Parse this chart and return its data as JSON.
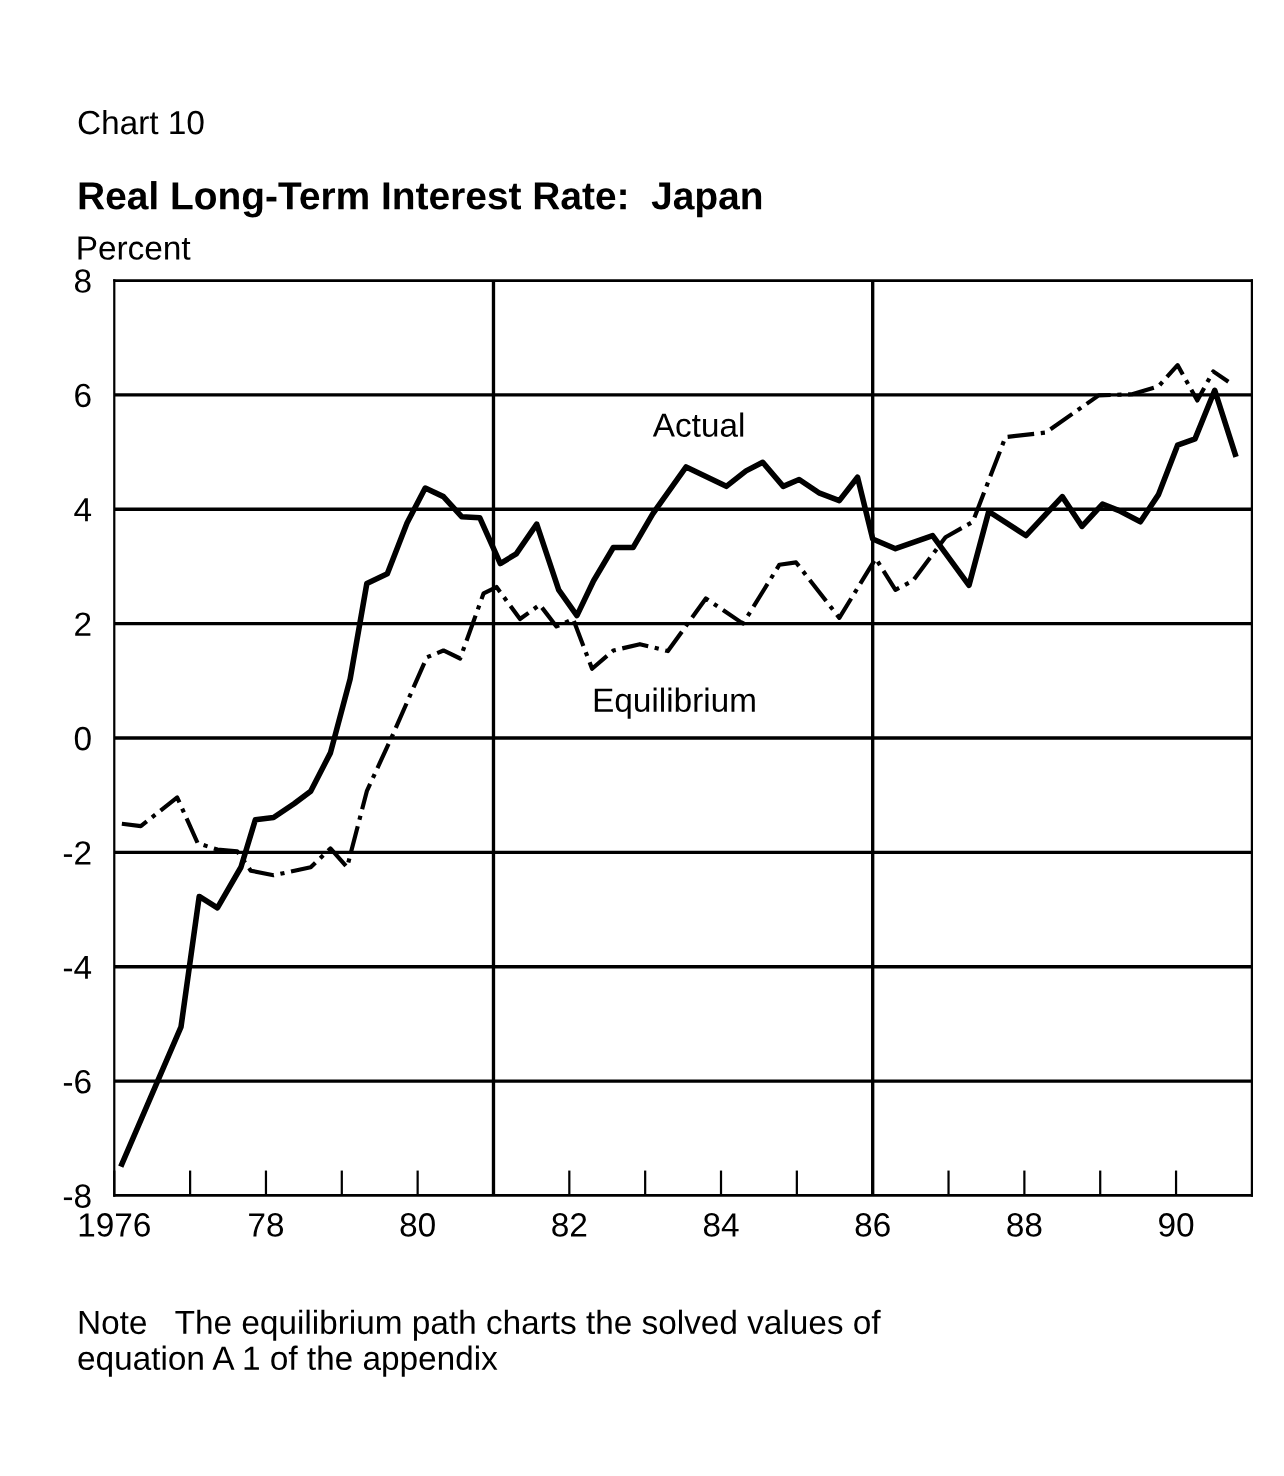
{
  "chart_data": {
    "type": "line",
    "subtitle": "Chart 10",
    "title": "Real Long-Term Interest Rate:  Japan",
    "ylabel": "Percent",
    "annotations": [
      "Note   The equilibrium path charts the solved values of\nequation A 1 of the appendix"
    ],
    "series": [
      {
        "name": "Actual",
        "color": "#000000",
        "line_style": "solid",
        "x": [
          1976.1,
          1976.88,
          1977.12,
          1977.36,
          1977.67,
          1977.86,
          1978.1,
          1978.37,
          1978.59,
          1978.85,
          1979.11,
          1979.33,
          1979.6,
          1979.86,
          1980.1,
          1980.34,
          1980.58,
          1980.82,
          1981.09,
          1981.3,
          1981.57,
          1981.86,
          1982.1,
          1982.32,
          1982.58,
          1982.84,
          1983.1,
          1983.54,
          1984.07,
          1984.33,
          1984.55,
          1984.82,
          1985.03,
          1985.3,
          1985.56,
          1985.8,
          1986.0,
          1986.3,
          1986.79,
          1987.27,
          1987.53,
          1988.02,
          1988.5,
          1988.76,
          1989.03,
          1989.24,
          1989.53,
          1989.77,
          1990.02,
          1990.25,
          1990.51,
          1990.78
        ],
        "values": [
          -7.45,
          -5.05,
          -2.77,
          -2.97,
          -2.26,
          -1.43,
          -1.39,
          -1.15,
          -0.93,
          -0.26,
          1.03,
          2.7,
          2.87,
          3.76,
          4.37,
          4.22,
          3.87,
          3.85,
          3.05,
          3.22,
          3.74,
          2.59,
          2.14,
          2.75,
          3.33,
          3.33,
          3.92,
          4.74,
          4.4,
          4.67,
          4.82,
          4.4,
          4.52,
          4.28,
          4.15,
          4.56,
          3.48,
          3.31,
          3.54,
          2.67,
          3.96,
          3.54,
          4.22,
          3.7,
          4.09,
          3.98,
          3.78,
          4.26,
          5.12,
          5.23,
          6.08,
          4.96
        ]
      },
      {
        "name": "Equilibrium",
        "color": "#000000",
        "line_style": "dashdot",
        "x": [
          1976.1,
          1976.35,
          1976.83,
          1977.1,
          1977.36,
          1977.62,
          1977.8,
          1978.1,
          1978.59,
          1978.85,
          1979.07,
          1979.33,
          1979.68,
          1980.12,
          1980.34,
          1980.56,
          1980.87,
          1981.04,
          1981.35,
          1981.61,
          1981.83,
          1982.05,
          1982.3,
          1982.58,
          1982.93,
          1983.3,
          1983.8,
          1984.29,
          1984.77,
          1984.99,
          1985.56,
          1986.04,
          1986.3,
          1986.53,
          1986.96,
          1987.32,
          1987.75,
          1988.28,
          1988.98,
          1989.42,
          1989.77,
          1990.02,
          1990.28,
          1990.49,
          1990.69
        ],
        "values": [
          -1.5,
          -1.54,
          -1.04,
          -1.84,
          -1.95,
          -1.98,
          -2.32,
          -2.4,
          -2.26,
          -1.93,
          -2.26,
          -0.93,
          0.08,
          1.41,
          1.53,
          1.39,
          2.53,
          2.64,
          2.08,
          2.33,
          1.95,
          2.08,
          1.21,
          1.53,
          1.64,
          1.52,
          2.44,
          2.0,
          3.03,
          3.07,
          2.1,
          3.14,
          2.59,
          2.75,
          3.51,
          3.78,
          5.26,
          5.34,
          5.99,
          6.01,
          6.15,
          6.52,
          5.9,
          6.41,
          6.23
        ]
      }
    ],
    "xlim": [
      1976,
      1991
    ],
    "xticks": [
      {
        "value": 1976,
        "label": "1976"
      },
      {
        "value": 1977,
        "label": null
      },
      {
        "value": 1978,
        "label": "78"
      },
      {
        "value": 1979,
        "label": null
      },
      {
        "value": 1980,
        "label": "80"
      },
      {
        "value": 1981,
        "label": null
      },
      {
        "value": 1982,
        "label": "82"
      },
      {
        "value": 1983,
        "label": null
      },
      {
        "value": 1984,
        "label": "84"
      },
      {
        "value": 1985,
        "label": null
      },
      {
        "value": 1986,
        "label": "86"
      },
      {
        "value": 1987,
        "label": null
      },
      {
        "value": 1988,
        "label": "88"
      },
      {
        "value": 1989,
        "label": null
      },
      {
        "value": 1990,
        "label": "90"
      }
    ],
    "ylim": [
      -8,
      8
    ],
    "yticks": [
      -8,
      -6,
      -4,
      -2,
      0,
      2,
      4,
      6,
      8
    ],
    "ref_lines": [
      {
        "axis": "x",
        "value": 1981,
        "label": null
      },
      {
        "axis": "x",
        "value": 1986,
        "label": null
      }
    ],
    "grid": "y",
    "legend": false
  }
}
